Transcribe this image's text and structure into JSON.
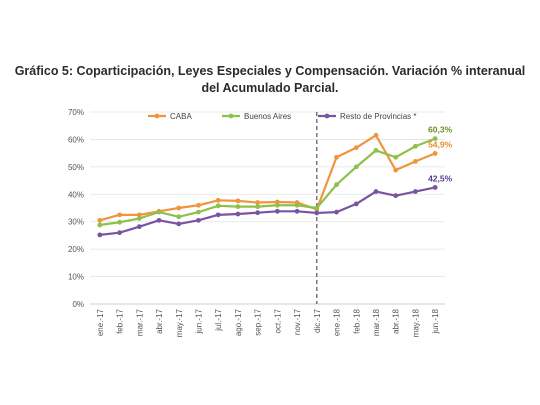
{
  "title": {
    "line1": "Gráfico 5: Coparticipación, Leyes Especiales y Compensación. Variación % interanual",
    "line2": "del Acumulado Parcial."
  },
  "chart_data": {
    "type": "line",
    "categories": [
      "ene.-17",
      "feb.-17",
      "mar.-17",
      "abr.-17",
      "may.-17",
      "jun.-17",
      "jul.-17",
      "ago.-17",
      "sep.-17",
      "oct.-17",
      "nov.-17",
      "dic.-17",
      "ene.-18",
      "feb.-18",
      "mar.-18",
      "abr.-18",
      "may.-18",
      "jun.-18"
    ],
    "yticks": [
      "0%",
      "10%",
      "20%",
      "30%",
      "40%",
      "50%",
      "60%",
      "70%"
    ],
    "ylim": [
      0,
      70
    ],
    "grid": true,
    "legend_position": "top-left",
    "series": [
      {
        "name": "CABA",
        "color": "#f0953e",
        "values": [
          30.5,
          32.5,
          32.5,
          33.8,
          35.0,
          36.0,
          37.8,
          37.6,
          37.0,
          37.2,
          37.0,
          34.5,
          53.5,
          57.0,
          61.5,
          48.8,
          52.0,
          54.9
        ]
      },
      {
        "name": "Buenos Aires",
        "color": "#8dc14a",
        "values": [
          28.8,
          29.8,
          31.2,
          33.5,
          31.8,
          33.5,
          35.8,
          35.5,
          35.5,
          36.0,
          36.0,
          35.0,
          43.5,
          50.0,
          56.0,
          53.5,
          57.5,
          60.3
        ]
      },
      {
        "name": "Resto de Provincias *",
        "color": "#7a53a3",
        "values": [
          25.2,
          26.0,
          28.2,
          30.5,
          29.2,
          30.5,
          32.5,
          32.8,
          33.3,
          33.8,
          33.8,
          33.2,
          33.5,
          36.5,
          41.0,
          39.5,
          41.0,
          42.5
        ]
      }
    ],
    "data_labels": [
      {
        "series": "Buenos Aires",
        "text": "60,3%",
        "color": "#6e8e2c"
      },
      {
        "series": "CABA",
        "text": "54,9%",
        "color": "#ee8a2e"
      },
      {
        "series": "Resto de Provincias *",
        "text": "42,5%",
        "color": "#5b3b8c"
      }
    ],
    "vertical_marker_category": "dic.-17"
  }
}
